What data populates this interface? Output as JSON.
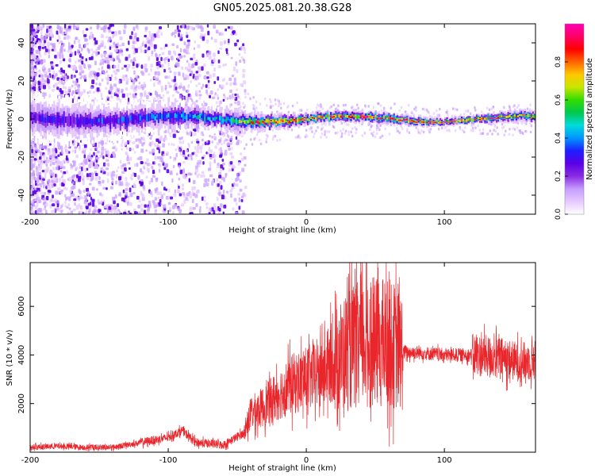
{
  "title": "GN05.2025.081.20.38.G28",
  "colors": {
    "snr_line": "#e8262b",
    "axis": "#000000",
    "background": "#ffffff",
    "colormap": [
      "#ffffff",
      "#e6c8ff",
      "#c79cff",
      "#8a2be2",
      "#5a00e6",
      "#1e1eff",
      "#0096ff",
      "#00dcdc",
      "#00c850",
      "#32dc00",
      "#c8e600",
      "#ffc800",
      "#ff6400",
      "#ff0000",
      "#ff0064",
      "#ff00b4"
    ]
  },
  "chart_data": [
    {
      "type": "heatmap",
      "title": "GN05.2025.081.20.38.G28",
      "xlabel": "Height of straight line (km)",
      "ylabel": "Frequency (Hz)",
      "xlim": [
        -200,
        166
      ],
      "ylim": [
        -50,
        50
      ],
      "x_ticks": [
        -200,
        -100,
        0,
        100
      ],
      "y_ticks": [
        -40,
        -20,
        0,
        20,
        40
      ],
      "colorbar": {
        "label": "Normalized spectral amplitude",
        "range": [
          0.0,
          1.0
        ],
        "ticks": [
          0.0,
          0.2,
          0.4,
          0.6,
          0.8
        ]
      },
      "ridge": {
        "center_frequency": 0,
        "description_points": [
          {
            "x": -200,
            "amplitude": 0.25,
            "halfwidth_hz": 12
          },
          {
            "x": -120,
            "amplitude": 0.35,
            "halfwidth_hz": 8
          },
          {
            "x": -60,
            "amplitude": 0.45,
            "halfwidth_hz": 6
          },
          {
            "x": -30,
            "amplitude": 0.85,
            "halfwidth_hz": 4
          },
          {
            "x": 0,
            "amplitude": 0.8,
            "halfwidth_hz": 3
          },
          {
            "x": 60,
            "amplitude": 0.85,
            "halfwidth_hz": 3
          },
          {
            "x": 100,
            "amplitude": 0.9,
            "halfwidth_hz": 2
          },
          {
            "x": 166,
            "amplitude": 0.7,
            "halfwidth_hz": 3
          }
        ]
      }
    },
    {
      "type": "line",
      "xlabel": "Height of straight line (km)",
      "ylabel": "SNR (10 * v/v)",
      "xlim": [
        -200,
        166
      ],
      "ylim": [
        0,
        7800
      ],
      "x_ticks": [
        -200,
        -100,
        0,
        100
      ],
      "y_ticks": [
        2000,
        4000,
        6000
      ],
      "series": [
        {
          "x": [
            -200,
            -180,
            -160,
            -140,
            -120,
            -100,
            -90,
            -80,
            -60,
            -45,
            -40,
            -30,
            -20,
            -10,
            0,
            10,
            20,
            30,
            40,
            50,
            60,
            70,
            80,
            100,
            120,
            140,
            155,
            166
          ],
          "y": [
            200,
            250,
            200,
            200,
            400,
            600,
            900,
            400,
            300,
            800,
            1600,
            1900,
            2400,
            2800,
            3000,
            3300,
            3700,
            4200,
            4500,
            4500,
            4500,
            4100,
            4100,
            4000,
            4000,
            3900,
            3700,
            3800
          ]
        }
      ]
    }
  ]
}
